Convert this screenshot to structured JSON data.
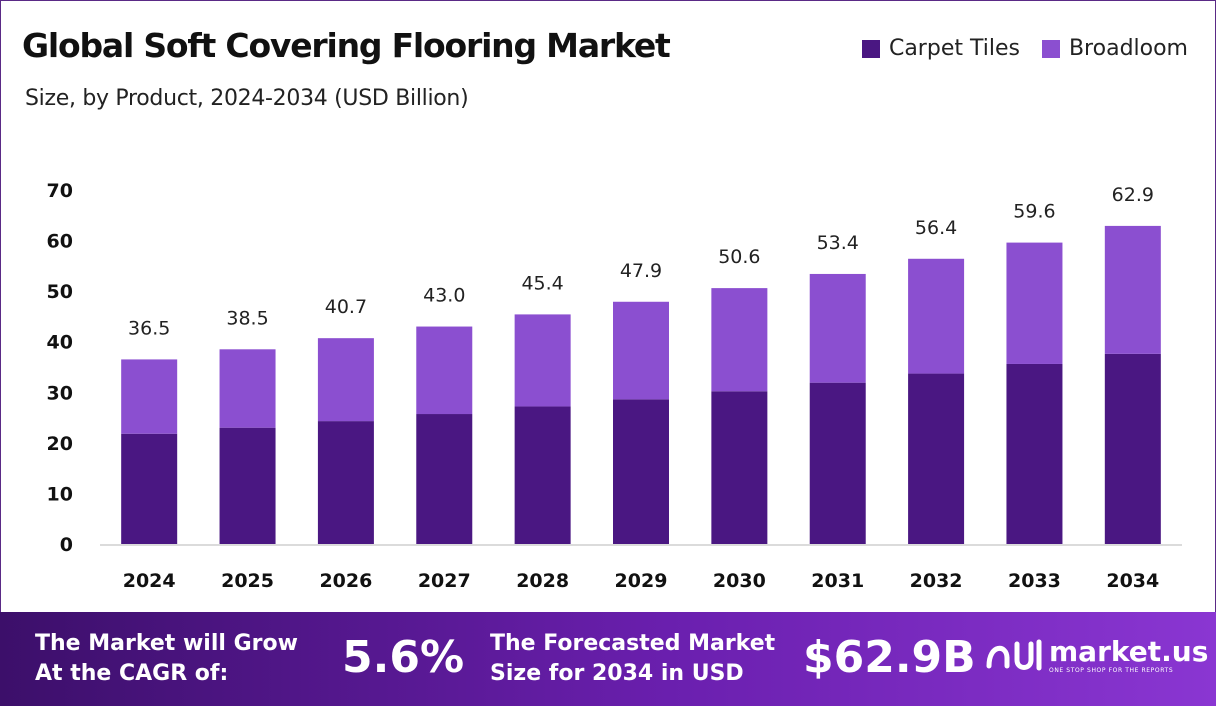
{
  "header": {
    "title": "Global Soft Covering Flooring Market",
    "subtitle": "Size, by Product, 2024-2034 (USD Billion)"
  },
  "colors": {
    "carpet_tiles": "#4a1782",
    "broadloom": "#8b4fd0",
    "footer_start": "#3c0f6a",
    "footer_end": "#8a36d2"
  },
  "chart_data": {
    "type": "bar",
    "stacked": true,
    "categories": [
      "2024",
      "2025",
      "2026",
      "2027",
      "2028",
      "2029",
      "2030",
      "2031",
      "2032",
      "2033",
      "2034"
    ],
    "series": [
      {
        "name": "Carpet Tiles",
        "values": [
          21.8,
          23.0,
          24.3,
          25.7,
          27.2,
          28.6,
          30.2,
          31.9,
          33.7,
          35.6,
          37.6
        ]
      },
      {
        "name": "Broadloom",
        "values": [
          14.7,
          15.5,
          16.4,
          17.3,
          18.2,
          19.3,
          20.4,
          21.5,
          22.7,
          24.0,
          25.3
        ]
      }
    ],
    "totals": [
      "36.5",
      "38.5",
      "40.7",
      "43.0",
      "45.4",
      "47.9",
      "50.6",
      "53.4",
      "56.4",
      "59.6",
      "62.9"
    ],
    "yticks": [
      "0",
      "10",
      "20",
      "30",
      "40",
      "50",
      "60",
      "70"
    ],
    "ylim": [
      0,
      70
    ],
    "legend": "top-right",
    "grid": false
  },
  "legend": {
    "items": [
      {
        "label": "Carpet Tiles"
      },
      {
        "label": "Broadloom"
      }
    ]
  },
  "footer": {
    "cagr_label": "The Market will Grow At the CAGR of:",
    "cagr_value": "5.6%",
    "forecast_label": "The Forecasted Market Size for 2034 in USD",
    "forecast_value": "$62.9B",
    "brand_name": "market.us",
    "brand_tagline": "ONE STOP SHOP FOR THE REPORTS"
  }
}
